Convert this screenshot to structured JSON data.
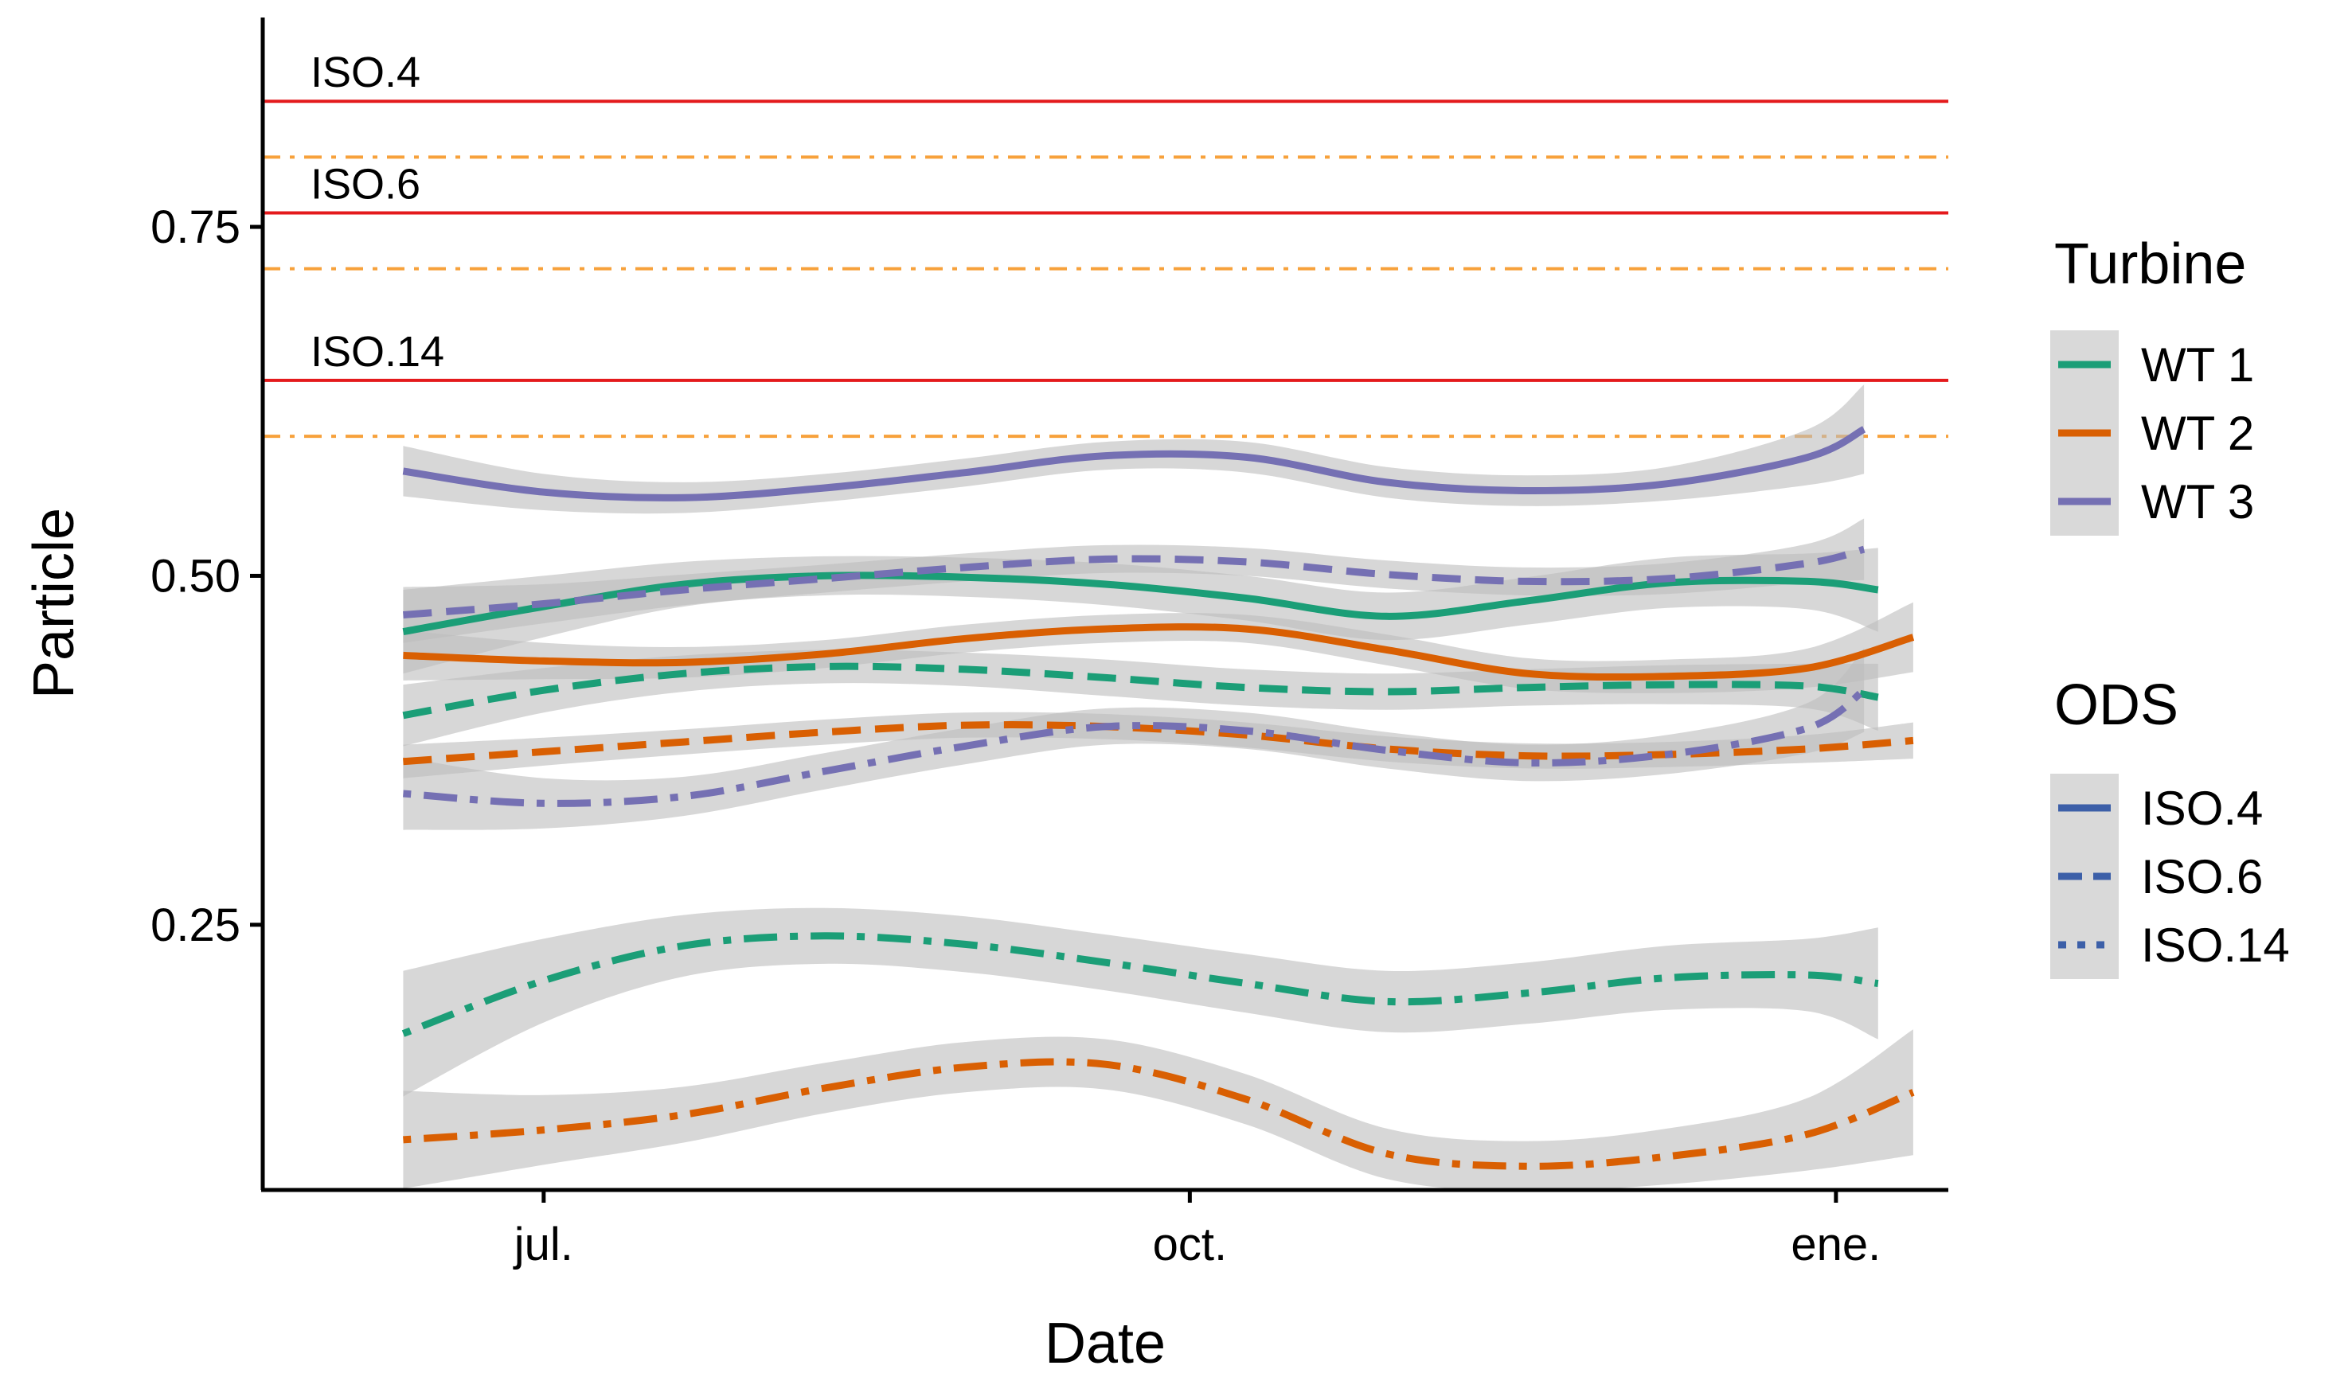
{
  "chart_data": {
    "type": "line",
    "xlabel": "Date",
    "ylabel": "Particle",
    "x_ticks": [
      {
        "label": "jul.",
        "date": "2021-07-01"
      },
      {
        "label": "oct.",
        "date": "2021-10-01"
      },
      {
        "label": "ene.",
        "date": "2022-01-01"
      }
    ],
    "xlim": [
      "2021-05-22",
      "2022-01-17"
    ],
    "y_ticks": [
      0.25,
      0.5,
      0.75
    ],
    "y_tick_labels": [
      "0.25",
      "0.50",
      "0.75"
    ],
    "ylim": [
      0.06,
      0.9
    ],
    "grid": false,
    "reference_lines": [
      {
        "label": "ISO.4",
        "y": 0.84,
        "color": "#e41a1c",
        "style": "solid"
      },
      {
        "label": "",
        "y": 0.8,
        "color": "#f7a13b",
        "style": "dotdash"
      },
      {
        "label": "ISO.6",
        "y": 0.76,
        "color": "#e41a1c",
        "style": "solid"
      },
      {
        "label": "",
        "y": 0.72,
        "color": "#f7a13b",
        "style": "dotdash"
      },
      {
        "label": "ISO.14",
        "y": 0.64,
        "color": "#e41a1c",
        "style": "solid"
      },
      {
        "label": "",
        "y": 0.6,
        "color": "#f7a13b",
        "style": "dotdash"
      }
    ],
    "legend": {
      "placement": "right",
      "color_title": "Turbine",
      "color_entries": [
        {
          "label": "WT 1",
          "color": "#1b9e77"
        },
        {
          "label": "WT 2",
          "color": "#d95f02"
        },
        {
          "label": "WT 3",
          "color": "#7570b3"
        }
      ],
      "linetype_title": "ODS",
      "linetype_entries": [
        {
          "label": "ISO.4",
          "style": "solid",
          "color": "#3c5fa8"
        },
        {
          "label": "ISO.6",
          "style": "dashed",
          "color": "#3c5fa8"
        },
        {
          "label": "ISO.14",
          "style": "dotted",
          "color": "#3c5fa8"
        }
      ]
    },
    "series": [
      {
        "turbine": "WT 1",
        "ods": "ISO.4",
        "color": "#1b9e77",
        "style": "solid",
        "x": [
          "2021-06-11",
          "2021-07-01",
          "2021-07-21",
          "2021-08-10",
          "2021-08-30",
          "2021-09-19",
          "2021-10-09",
          "2021-10-29",
          "2021-11-18",
          "2021-12-08",
          "2021-12-28",
          "2022-01-07"
        ],
        "y": [
          0.46,
          0.478,
          0.494,
          0.5,
          0.499,
          0.494,
          0.484,
          0.471,
          0.482,
          0.495,
          0.496,
          0.49
        ],
        "ci": [
          0.03,
          0.022,
          0.016,
          0.014,
          0.014,
          0.015,
          0.016,
          0.017,
          0.017,
          0.018,
          0.02,
          0.03
        ]
      },
      {
        "turbine": "WT 1",
        "ods": "ISO.6",
        "color": "#1b9e77",
        "style": "dashed",
        "x": [
          "2021-06-11",
          "2021-07-01",
          "2021-07-21",
          "2021-08-10",
          "2021-08-30",
          "2021-09-19",
          "2021-10-09",
          "2021-10-29",
          "2021-11-18",
          "2021-12-08",
          "2021-12-28",
          "2022-01-07"
        ],
        "y": [
          0.4,
          0.418,
          0.43,
          0.435,
          0.433,
          0.427,
          0.42,
          0.417,
          0.42,
          0.422,
          0.421,
          0.413
        ],
        "ci": [
          0.022,
          0.016,
          0.013,
          0.012,
          0.012,
          0.013,
          0.013,
          0.013,
          0.013,
          0.014,
          0.016,
          0.024
        ]
      },
      {
        "turbine": "WT 1",
        "ods": "ISO.14",
        "color": "#1b9e77",
        "style": "dotdash",
        "x": [
          "2021-06-11",
          "2021-07-01",
          "2021-07-21",
          "2021-08-10",
          "2021-08-30",
          "2021-09-19",
          "2021-10-09",
          "2021-10-29",
          "2021-11-18",
          "2021-12-08",
          "2021-12-28",
          "2022-01-07"
        ],
        "y": [
          0.172,
          0.21,
          0.235,
          0.242,
          0.236,
          0.223,
          0.208,
          0.195,
          0.201,
          0.212,
          0.214,
          0.208
        ],
        "ci": [
          0.045,
          0.03,
          0.022,
          0.02,
          0.02,
          0.02,
          0.021,
          0.022,
          0.022,
          0.023,
          0.026,
          0.04
        ]
      },
      {
        "turbine": "WT 2",
        "ods": "ISO.4",
        "color": "#d95f02",
        "style": "solid",
        "x": [
          "2021-06-11",
          "2021-07-01",
          "2021-07-21",
          "2021-08-10",
          "2021-08-30",
          "2021-09-19",
          "2021-10-09",
          "2021-10-29",
          "2021-11-18",
          "2021-12-08",
          "2021-12-28",
          "2022-01-12"
        ],
        "y": [
          0.443,
          0.439,
          0.438,
          0.444,
          0.455,
          0.462,
          0.462,
          0.447,
          0.43,
          0.428,
          0.434,
          0.456
        ],
        "ci": [
          0.018,
          0.013,
          0.011,
          0.01,
          0.01,
          0.01,
          0.01,
          0.011,
          0.011,
          0.012,
          0.014,
          0.025
        ]
      },
      {
        "turbine": "WT 2",
        "ods": "ISO.6",
        "color": "#d95f02",
        "style": "dashed",
        "x": [
          "2021-06-11",
          "2021-07-01",
          "2021-07-21",
          "2021-08-10",
          "2021-08-30",
          "2021-09-19",
          "2021-10-09",
          "2021-10-29",
          "2021-11-18",
          "2021-12-08",
          "2021-12-28",
          "2022-01-12"
        ],
        "y": [
          0.367,
          0.374,
          0.381,
          0.388,
          0.393,
          0.392,
          0.386,
          0.376,
          0.371,
          0.372,
          0.376,
          0.382
        ],
        "ci": [
          0.012,
          0.01,
          0.009,
          0.009,
          0.009,
          0.009,
          0.009,
          0.009,
          0.009,
          0.009,
          0.01,
          0.013
        ]
      },
      {
        "turbine": "WT 2",
        "ods": "ISO.14",
        "color": "#d95f02",
        "style": "dotdash",
        "x": [
          "2021-06-11",
          "2021-07-01",
          "2021-07-21",
          "2021-08-10",
          "2021-08-30",
          "2021-09-19",
          "2021-10-09",
          "2021-10-29",
          "2021-11-18",
          "2021-12-08",
          "2021-12-28",
          "2022-01-12"
        ],
        "y": [
          0.096,
          0.103,
          0.114,
          0.133,
          0.148,
          0.15,
          0.125,
          0.086,
          0.077,
          0.084,
          0.1,
          0.13
        ],
        "ci": [
          0.035,
          0.025,
          0.02,
          0.018,
          0.018,
          0.018,
          0.018,
          0.018,
          0.018,
          0.02,
          0.026,
          0.045
        ]
      },
      {
        "turbine": "WT 3",
        "ods": "ISO.4",
        "color": "#7570b3",
        "style": "solid",
        "x": [
          "2021-06-11",
          "2021-07-01",
          "2021-07-21",
          "2021-08-10",
          "2021-08-30",
          "2021-09-19",
          "2021-10-09",
          "2021-10-29",
          "2021-11-18",
          "2021-12-08",
          "2021-12-28",
          "2022-01-05"
        ],
        "y": [
          0.575,
          0.56,
          0.556,
          0.563,
          0.574,
          0.586,
          0.585,
          0.567,
          0.561,
          0.566,
          0.585,
          0.605
        ],
        "ci": [
          0.018,
          0.013,
          0.011,
          0.01,
          0.01,
          0.01,
          0.011,
          0.011,
          0.011,
          0.012,
          0.02,
          0.032
        ]
      },
      {
        "turbine": "WT 3",
        "ods": "ISO.6",
        "color": "#7570b3",
        "style": "dashed",
        "x": [
          "2021-06-11",
          "2021-07-01",
          "2021-07-21",
          "2021-08-10",
          "2021-08-30",
          "2021-09-19",
          "2021-10-09",
          "2021-10-29",
          "2021-11-18",
          "2021-12-08",
          "2021-12-28",
          "2022-01-05"
        ],
        "y": [
          0.472,
          0.48,
          0.49,
          0.498,
          0.506,
          0.512,
          0.51,
          0.501,
          0.496,
          0.498,
          0.509,
          0.519
        ],
        "ci": [
          0.02,
          0.014,
          0.011,
          0.01,
          0.01,
          0.01,
          0.01,
          0.01,
          0.01,
          0.011,
          0.014,
          0.022
        ]
      },
      {
        "turbine": "WT 3",
        "ods": "ISO.14",
        "color": "#7570b3",
        "style": "dotdash",
        "x": [
          "2021-06-11",
          "2021-07-01",
          "2021-07-21",
          "2021-08-10",
          "2021-08-30",
          "2021-09-19",
          "2021-10-09",
          "2021-10-29",
          "2021-11-18",
          "2021-12-08",
          "2021-12-28",
          "2022-01-05"
        ],
        "y": [
          0.344,
          0.337,
          0.342,
          0.36,
          0.378,
          0.392,
          0.389,
          0.375,
          0.366,
          0.372,
          0.391,
          0.418
        ],
        "ci": [
          0.026,
          0.018,
          0.014,
          0.013,
          0.013,
          0.013,
          0.013,
          0.013,
          0.013,
          0.014,
          0.018,
          0.03
        ]
      }
    ]
  }
}
